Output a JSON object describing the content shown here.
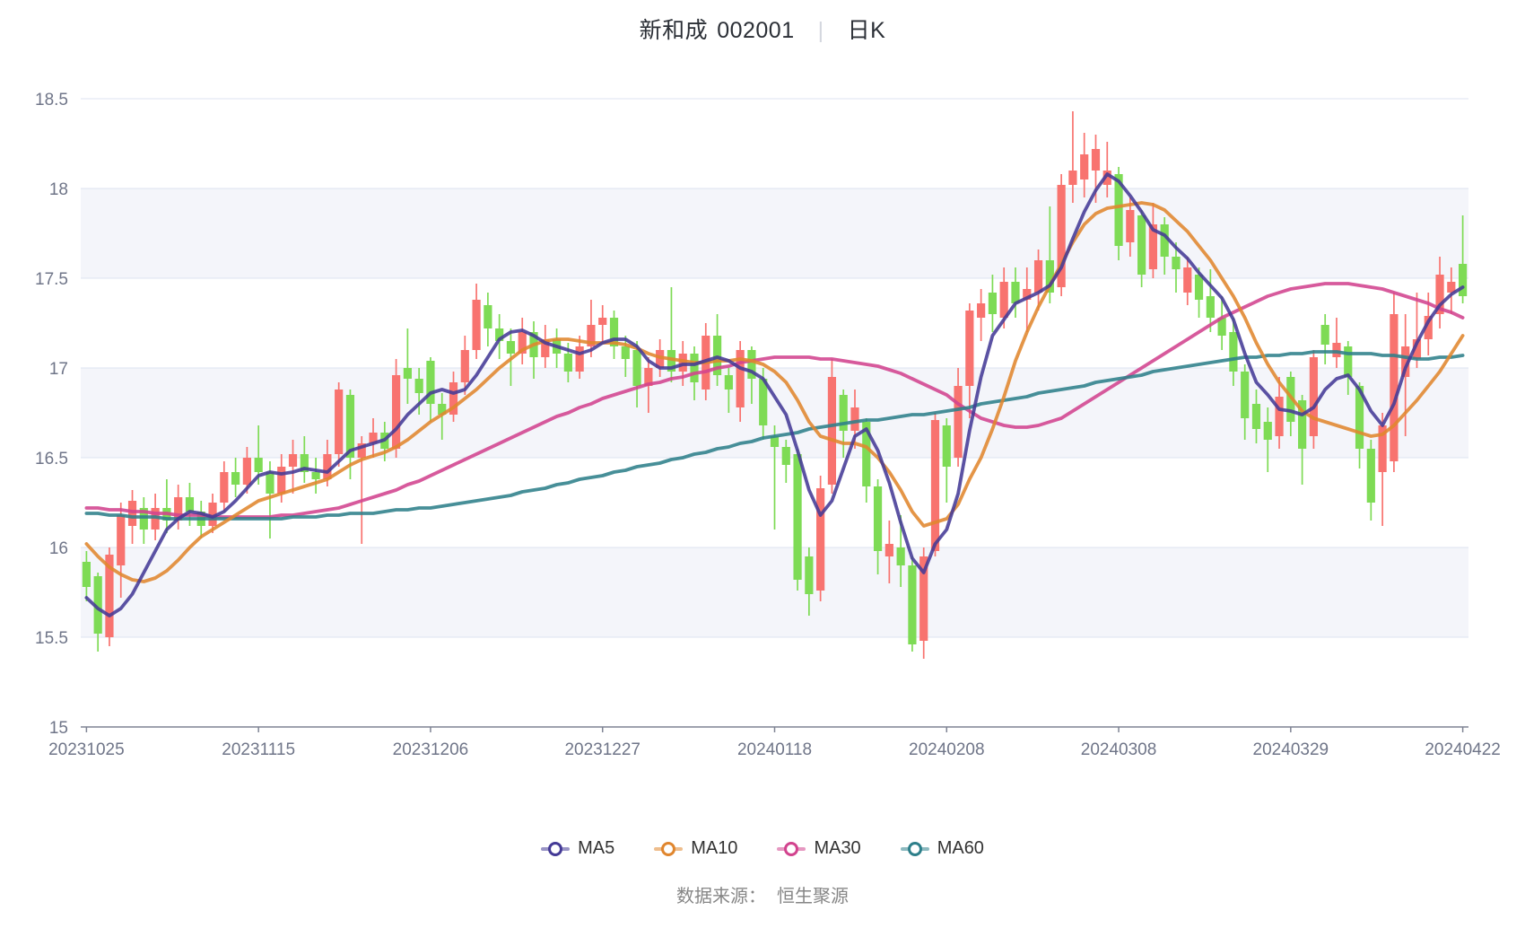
{
  "title": {
    "stock_name": "新和成",
    "stock_code": "002001",
    "separator": "|",
    "chart_type_label": "日K"
  },
  "footer": {
    "source_label": "数据来源：",
    "source_value": "恒生聚源"
  },
  "legend": [
    {
      "label": "MA5",
      "color": "#443a96"
    },
    {
      "label": "MA10",
      "color": "#e0862e"
    },
    {
      "label": "MA30",
      "color": "#d2438e"
    },
    {
      "label": "MA60",
      "color": "#2d7f8a"
    }
  ],
  "colors": {
    "up_candle": "#f8736f",
    "down_candle": "#7edb55",
    "band": "#f4f5fa",
    "grid": "#dde3f0",
    "axis": "#7f8494",
    "tick_text": "#6f7588"
  },
  "chart_data": {
    "type": "candlestick",
    "title": "新和成 002001 日K",
    "legend_position": "bottom",
    "grid": true,
    "y_axis": {
      "min": 15,
      "max": 18.5,
      "tick_step": 0.5,
      "ticks": [
        "15",
        "15.5",
        "16",
        "16.5",
        "17",
        "17.5",
        "18",
        "18.5"
      ]
    },
    "x_axis": {
      "tick_labels": [
        "20231025",
        "20231115",
        "20231206",
        "20231227",
        "20240118",
        "20240208",
        "20240308",
        "20240329",
        "20240422"
      ],
      "tick_indices": [
        0,
        15,
        30,
        45,
        60,
        75,
        90,
        105,
        120
      ]
    },
    "shaded_bands": [
      [
        18,
        17.5
      ],
      [
        17,
        16.5
      ],
      [
        16,
        15.5
      ]
    ],
    "candle_format": [
      "open",
      "close",
      "high",
      "low"
    ],
    "candles": [
      [
        15.92,
        15.78,
        15.98,
        15.7
      ],
      [
        15.84,
        15.52,
        15.86,
        15.42
      ],
      [
        15.5,
        15.96,
        16.0,
        15.45
      ],
      [
        15.9,
        16.18,
        16.25,
        15.72
      ],
      [
        16.12,
        16.26,
        16.32,
        16.02
      ],
      [
        16.22,
        16.1,
        16.28,
        16.02
      ],
      [
        16.1,
        16.22,
        16.3,
        16.04
      ],
      [
        16.22,
        16.15,
        16.38,
        16.08
      ],
      [
        16.15,
        16.28,
        16.35,
        16.1
      ],
      [
        16.28,
        16.2,
        16.36,
        16.12
      ],
      [
        16.2,
        16.12,
        16.26,
        16.05
      ],
      [
        16.12,
        16.25,
        16.3,
        16.08
      ],
      [
        16.25,
        16.42,
        16.48,
        16.2
      ],
      [
        16.42,
        16.35,
        16.5,
        16.28
      ],
      [
        16.35,
        16.5,
        16.56,
        16.3
      ],
      [
        16.5,
        16.42,
        16.68,
        16.35
      ],
      [
        16.42,
        16.3,
        16.48,
        16.05
      ],
      [
        16.3,
        16.45,
        16.52,
        16.25
      ],
      [
        16.45,
        16.52,
        16.6,
        16.3
      ],
      [
        16.52,
        16.42,
        16.62,
        16.36
      ],
      [
        16.42,
        16.38,
        16.5,
        16.3
      ],
      [
        16.38,
        16.52,
        16.6,
        16.34
      ],
      [
        16.52,
        16.88,
        16.92,
        16.45
      ],
      [
        16.85,
        16.5,
        16.88,
        16.38
      ],
      [
        16.5,
        16.58,
        16.62,
        16.02
      ],
      [
        16.58,
        16.64,
        16.72,
        16.5
      ],
      [
        16.64,
        16.55,
        16.7,
        16.48
      ],
      [
        16.55,
        16.96,
        17.05,
        16.5
      ],
      [
        17.0,
        16.94,
        17.22,
        16.8
      ],
      [
        16.94,
        16.86,
        17.0,
        16.74
      ],
      [
        17.04,
        16.8,
        17.06,
        16.7
      ],
      [
        16.8,
        16.74,
        16.86,
        16.6
      ],
      [
        16.74,
        16.92,
        16.98,
        16.7
      ],
      [
        16.92,
        17.1,
        17.18,
        16.85
      ],
      [
        17.1,
        17.38,
        17.47,
        17.05
      ],
      [
        17.35,
        17.22,
        17.42,
        17.12
      ],
      [
        17.22,
        17.15,
        17.3,
        17.05
      ],
      [
        17.15,
        17.08,
        17.22,
        16.9
      ],
      [
        17.08,
        17.2,
        17.28,
        17.02
      ],
      [
        17.2,
        17.06,
        17.26,
        16.94
      ],
      [
        17.06,
        17.16,
        17.24,
        17.0
      ],
      [
        17.16,
        17.08,
        17.22,
        17.0
      ],
      [
        17.08,
        16.98,
        17.14,
        16.92
      ],
      [
        16.98,
        17.12,
        17.18,
        16.94
      ],
      [
        17.12,
        17.24,
        17.38,
        17.06
      ],
      [
        17.24,
        17.28,
        17.35,
        17.15
      ],
      [
        17.28,
        17.12,
        17.32,
        17.05
      ],
      [
        17.12,
        17.05,
        17.18,
        16.95
      ],
      [
        17.1,
        16.9,
        17.15,
        16.78
      ],
      [
        16.9,
        17.0,
        17.06,
        16.75
      ],
      [
        17.0,
        17.1,
        17.16,
        16.95
      ],
      [
        17.1,
        16.98,
        17.45,
        16.92
      ],
      [
        16.98,
        17.08,
        17.15,
        16.9
      ],
      [
        17.08,
        16.92,
        17.12,
        16.82
      ],
      [
        16.88,
        17.18,
        17.25,
        16.82
      ],
      [
        17.18,
        16.96,
        17.3,
        16.9
      ],
      [
        16.96,
        16.88,
        17.0,
        16.75
      ],
      [
        16.78,
        17.1,
        17.15,
        16.7
      ],
      [
        17.1,
        16.94,
        17.12,
        16.8
      ],
      [
        16.94,
        16.68,
        17.0,
        16.6
      ],
      [
        16.62,
        16.56,
        16.68,
        16.1
      ],
      [
        16.56,
        16.46,
        16.6,
        16.36
      ],
      [
        16.52,
        15.82,
        16.55,
        15.76
      ],
      [
        15.95,
        15.74,
        16.0,
        15.62
      ],
      [
        15.76,
        16.33,
        16.4,
        15.7
      ],
      [
        16.35,
        16.95,
        17.05,
        16.3
      ],
      [
        16.85,
        16.65,
        16.88,
        16.5
      ],
      [
        16.65,
        16.78,
        16.88,
        16.55
      ],
      [
        16.7,
        16.34,
        16.72,
        16.25
      ],
      [
        16.34,
        15.98,
        16.38,
        15.85
      ],
      [
        15.95,
        16.02,
        16.15,
        15.8
      ],
      [
        16.0,
        15.9,
        16.18,
        15.78
      ],
      [
        15.9,
        15.46,
        15.95,
        15.42
      ],
      [
        15.48,
        15.95,
        16.0,
        15.38
      ],
      [
        15.98,
        16.71,
        16.75,
        15.95
      ],
      [
        16.68,
        16.45,
        16.72,
        16.25
      ],
      [
        16.5,
        16.9,
        17.0,
        16.45
      ],
      [
        16.9,
        17.32,
        17.36,
        16.72
      ],
      [
        17.28,
        17.36,
        17.44,
        17.15
      ],
      [
        17.42,
        17.3,
        17.52,
        17.2
      ],
      [
        17.28,
        17.48,
        17.56,
        17.22
      ],
      [
        17.48,
        17.36,
        17.56,
        17.28
      ],
      [
        17.38,
        17.44,
        17.56,
        17.2
      ],
      [
        17.42,
        17.6,
        17.66,
        17.32
      ],
      [
        17.6,
        17.42,
        17.9,
        17.36
      ],
      [
        17.45,
        18.02,
        18.08,
        17.4
      ],
      [
        18.02,
        18.1,
        18.43,
        17.92
      ],
      [
        18.05,
        18.19,
        18.31,
        17.95
      ],
      [
        18.1,
        18.22,
        18.3,
        17.92
      ],
      [
        18.02,
        18.1,
        18.26,
        17.95
      ],
      [
        18.08,
        17.68,
        18.12,
        17.6
      ],
      [
        17.7,
        17.88,
        17.95,
        17.62
      ],
      [
        17.85,
        17.52,
        17.88,
        17.45
      ],
      [
        17.55,
        17.8,
        17.92,
        17.5
      ],
      [
        17.8,
        17.62,
        17.84,
        17.52
      ],
      [
        17.62,
        17.55,
        17.7,
        17.42
      ],
      [
        17.42,
        17.56,
        17.62,
        17.35
      ],
      [
        17.52,
        17.38,
        17.56,
        17.28
      ],
      [
        17.4,
        17.28,
        17.55,
        17.2
      ],
      [
        17.28,
        17.18,
        17.4,
        17.1
      ],
      [
        17.2,
        16.98,
        17.28,
        16.9
      ],
      [
        16.98,
        16.72,
        17.02,
        16.6
      ],
      [
        16.8,
        16.66,
        16.88,
        16.58
      ],
      [
        16.7,
        16.6,
        16.78,
        16.42
      ],
      [
        16.62,
        16.84,
        16.95,
        16.55
      ],
      [
        16.95,
        16.7,
        16.98,
        16.62
      ],
      [
        16.82,
        16.55,
        16.85,
        16.35
      ],
      [
        16.62,
        17.06,
        17.1,
        16.55
      ],
      [
        17.24,
        17.13,
        17.3,
        17.02
      ],
      [
        17.06,
        17.14,
        17.28,
        17.0
      ],
      [
        17.12,
        16.95,
        17.15,
        16.85
      ],
      [
        16.9,
        16.55,
        16.92,
        16.44
      ],
      [
        16.55,
        16.25,
        16.6,
        16.15
      ],
      [
        16.42,
        16.68,
        16.75,
        16.12
      ],
      [
        16.48,
        17.3,
        17.42,
        16.42
      ],
      [
        16.95,
        17.12,
        17.3,
        16.62
      ],
      [
        17.05,
        17.16,
        17.42,
        17.0
      ],
      [
        17.16,
        17.29,
        17.42,
        17.07
      ],
      [
        17.3,
        17.52,
        17.62,
        17.22
      ],
      [
        17.42,
        17.48,
        17.56,
        17.3
      ],
      [
        17.58,
        17.4,
        17.85,
        17.36
      ]
    ],
    "ma_series": [
      {
        "name": "MA5",
        "color": "#443a96",
        "values": [
          15.72,
          15.66,
          15.62,
          15.66,
          15.74,
          15.86,
          15.98,
          16.1,
          16.16,
          16.2,
          16.19,
          16.17,
          16.2,
          16.26,
          16.33,
          16.4,
          16.42,
          16.41,
          16.42,
          16.44,
          16.43,
          16.42,
          16.48,
          16.54,
          16.56,
          16.58,
          16.6,
          16.66,
          16.74,
          16.8,
          16.86,
          16.88,
          16.86,
          16.88,
          16.96,
          17.06,
          17.16,
          17.2,
          17.21,
          17.18,
          17.14,
          17.12,
          17.1,
          17.08,
          17.1,
          17.14,
          17.16,
          17.16,
          17.12,
          17.04,
          17.0,
          17.0,
          17.02,
          17.02,
          17.04,
          17.06,
          17.04,
          17.0,
          16.98,
          16.94,
          16.84,
          16.74,
          16.54,
          16.32,
          16.18,
          16.26,
          16.44,
          16.62,
          16.66,
          16.54,
          16.36,
          16.14,
          15.94,
          15.86,
          16.02,
          16.1,
          16.3,
          16.65,
          16.95,
          17.18,
          17.27,
          17.36,
          17.39,
          17.42,
          17.46,
          17.56,
          17.72,
          17.87,
          17.99,
          18.08,
          18.04,
          17.96,
          17.87,
          17.77,
          17.74,
          17.67,
          17.61,
          17.53,
          17.46,
          17.39,
          17.27,
          17.08,
          16.92,
          16.85,
          16.77,
          16.76,
          16.74,
          16.78,
          16.88,
          16.94,
          16.96,
          16.88,
          16.76,
          16.68,
          16.8,
          17.0,
          17.14,
          17.26,
          17.35,
          17.41,
          17.45
        ]
      },
      {
        "name": "MA10",
        "color": "#e0862e",
        "values": [
          16.02,
          15.95,
          15.89,
          15.85,
          15.82,
          15.81,
          15.83,
          15.87,
          15.93,
          16.0,
          16.06,
          16.1,
          16.14,
          16.18,
          16.22,
          16.26,
          16.28,
          16.3,
          16.32,
          16.34,
          16.36,
          16.38,
          16.42,
          16.46,
          16.49,
          16.51,
          16.53,
          16.56,
          16.6,
          16.65,
          16.7,
          16.74,
          16.78,
          16.83,
          16.88,
          16.94,
          17.0,
          17.05,
          17.1,
          17.13,
          17.15,
          17.16,
          17.16,
          17.15,
          17.14,
          17.14,
          17.14,
          17.13,
          17.11,
          17.08,
          17.06,
          17.05,
          17.04,
          17.03,
          17.03,
          17.04,
          17.04,
          17.05,
          17.04,
          17.02,
          16.98,
          16.92,
          16.82,
          16.7,
          16.62,
          16.6,
          16.58,
          16.58,
          16.56,
          16.5,
          16.42,
          16.32,
          16.2,
          16.12,
          16.14,
          16.16,
          16.24,
          16.38,
          16.5,
          16.66,
          16.84,
          17.04,
          17.2,
          17.34,
          17.46,
          17.58,
          17.7,
          17.8,
          17.86,
          17.89,
          17.9,
          17.91,
          17.92,
          17.91,
          17.88,
          17.82,
          17.76,
          17.68,
          17.6,
          17.5,
          17.4,
          17.28,
          17.14,
          17.02,
          16.92,
          16.84,
          16.76,
          16.72,
          16.7,
          16.68,
          16.66,
          16.64,
          16.62,
          16.63,
          16.68,
          16.75,
          16.82,
          16.9,
          16.98,
          17.08,
          17.18
        ]
      },
      {
        "name": "MA30",
        "color": "#d2438e",
        "values": [
          16.22,
          16.22,
          16.21,
          16.21,
          16.2,
          16.2,
          16.19,
          16.19,
          16.18,
          16.18,
          16.18,
          16.17,
          16.17,
          16.17,
          16.17,
          16.17,
          16.17,
          16.18,
          16.18,
          16.19,
          16.2,
          16.21,
          16.22,
          16.24,
          16.26,
          16.28,
          16.3,
          16.32,
          16.35,
          16.37,
          16.4,
          16.43,
          16.46,
          16.49,
          16.52,
          16.55,
          16.58,
          16.61,
          16.64,
          16.67,
          16.7,
          16.73,
          16.75,
          16.78,
          16.8,
          16.83,
          16.85,
          16.87,
          16.89,
          16.91,
          16.92,
          16.94,
          16.95,
          16.97,
          16.98,
          17.0,
          17.01,
          17.03,
          17.04,
          17.05,
          17.06,
          17.06,
          17.06,
          17.06,
          17.05,
          17.05,
          17.04,
          17.03,
          17.02,
          17.01,
          16.99,
          16.97,
          16.94,
          16.91,
          16.88,
          16.85,
          16.8,
          16.76,
          16.72,
          16.7,
          16.68,
          16.67,
          16.67,
          16.68,
          16.7,
          16.72,
          16.76,
          16.8,
          16.84,
          16.88,
          16.92,
          16.96,
          17.0,
          17.04,
          17.08,
          17.12,
          17.16,
          17.2,
          17.24,
          17.28,
          17.31,
          17.34,
          17.37,
          17.4,
          17.42,
          17.44,
          17.45,
          17.46,
          17.47,
          17.47,
          17.47,
          17.46,
          17.45,
          17.44,
          17.42,
          17.4,
          17.38,
          17.36,
          17.33,
          17.31,
          17.28
        ]
      },
      {
        "name": "MA60",
        "color": "#2d7f8a",
        "values": [
          16.19,
          16.19,
          16.18,
          16.18,
          16.17,
          16.17,
          16.17,
          16.16,
          16.16,
          16.16,
          16.16,
          16.16,
          16.16,
          16.16,
          16.16,
          16.16,
          16.16,
          16.16,
          16.17,
          16.17,
          16.17,
          16.18,
          16.18,
          16.19,
          16.19,
          16.19,
          16.2,
          16.21,
          16.21,
          16.22,
          16.22,
          16.23,
          16.24,
          16.25,
          16.26,
          16.27,
          16.28,
          16.29,
          16.31,
          16.32,
          16.33,
          16.35,
          16.36,
          16.38,
          16.39,
          16.4,
          16.42,
          16.43,
          16.45,
          16.46,
          16.47,
          16.49,
          16.5,
          16.52,
          16.53,
          16.55,
          16.56,
          16.58,
          16.59,
          16.61,
          16.62,
          16.63,
          16.64,
          16.66,
          16.67,
          16.68,
          16.69,
          16.7,
          16.71,
          16.71,
          16.72,
          16.73,
          16.74,
          16.74,
          16.75,
          16.76,
          16.77,
          16.78,
          16.8,
          16.81,
          16.82,
          16.83,
          16.84,
          16.86,
          16.87,
          16.88,
          16.89,
          16.9,
          16.92,
          16.93,
          16.94,
          16.95,
          16.96,
          16.98,
          16.99,
          17.0,
          17.01,
          17.02,
          17.03,
          17.04,
          17.05,
          17.06,
          17.06,
          17.07,
          17.07,
          17.08,
          17.08,
          17.09,
          17.09,
          17.09,
          17.08,
          17.08,
          17.08,
          17.07,
          17.07,
          17.06,
          17.05,
          17.05,
          17.06,
          17.06,
          17.07
        ]
      }
    ]
  }
}
